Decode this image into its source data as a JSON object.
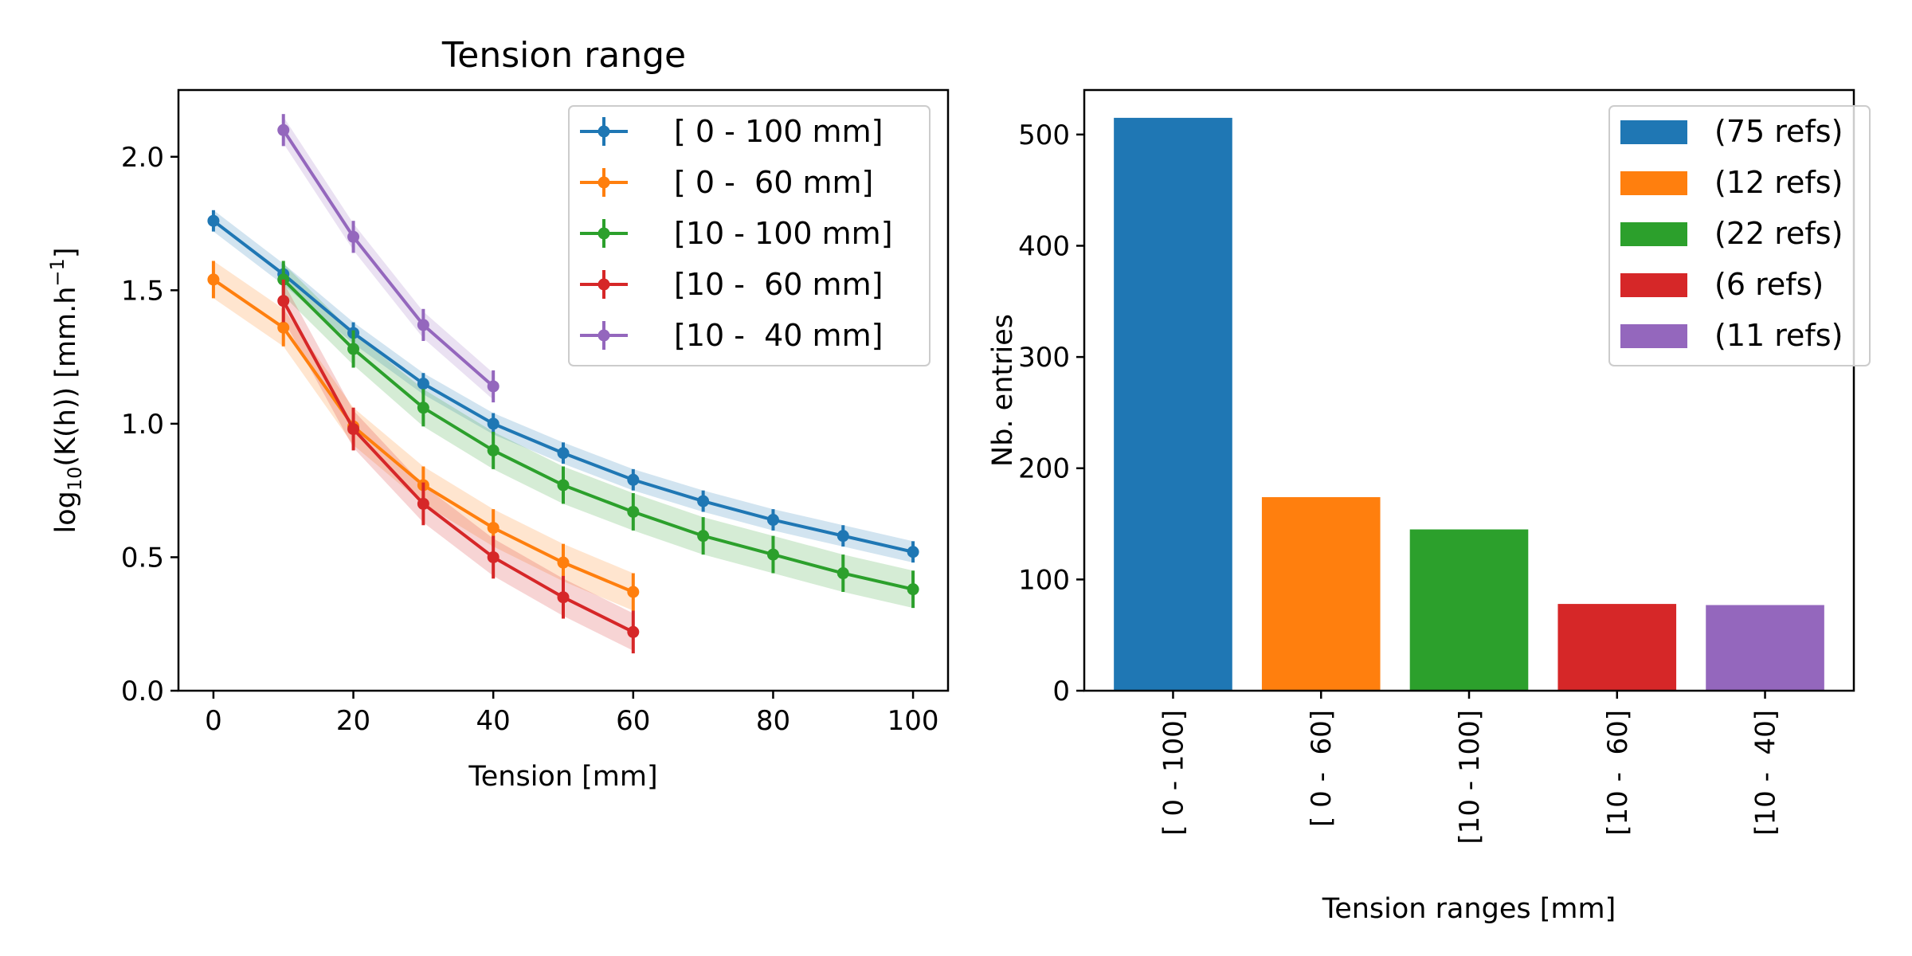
{
  "chart_data": [
    {
      "type": "line",
      "title": "Tension range",
      "xlabel": "Tension [mm]",
      "ylabel": "log10(K(h)) [mm.h-1]",
      "xlim": [
        -5,
        105
      ],
      "ylim": [
        0,
        2.25
      ],
      "xticks": [
        "0",
        "20",
        "40",
        "60",
        "80",
        "100"
      ],
      "yticks": [
        "0.0",
        "0.5",
        "1.0",
        "1.5",
        "2.0"
      ],
      "grid": false,
      "legend_position": "top-right",
      "series": [
        {
          "name": "[ 0 - 100 mm]",
          "color": "#1f77b4",
          "x": [
            0,
            10,
            20,
            30,
            40,
            50,
            60,
            70,
            80,
            90,
            100
          ],
          "y": [
            1.76,
            1.56,
            1.34,
            1.15,
            1.0,
            0.89,
            0.79,
            0.71,
            0.64,
            0.58,
            0.52
          ],
          "err": [
            0.04,
            0.04,
            0.04,
            0.04,
            0.04,
            0.04,
            0.04,
            0.04,
            0.04,
            0.04,
            0.04
          ],
          "band": [
            0.04,
            0.04,
            0.04,
            0.04,
            0.04,
            0.04,
            0.04,
            0.04,
            0.04,
            0.04,
            0.04
          ]
        },
        {
          "name": "[ 0 -  60 mm]",
          "color": "#ff7f0e",
          "x": [
            0,
            10,
            20,
            30,
            40,
            50,
            60
          ],
          "y": [
            1.54,
            1.36,
            0.99,
            0.77,
            0.61,
            0.48,
            0.37
          ],
          "err": [
            0.07,
            0.07,
            0.07,
            0.07,
            0.07,
            0.07,
            0.07
          ],
          "band": [
            0.07,
            0.07,
            0.07,
            0.07,
            0.07,
            0.07,
            0.07
          ]
        },
        {
          "name": "[10 - 100 mm]",
          "color": "#2ca02c",
          "x": [
            10,
            20,
            30,
            40,
            50,
            60,
            70,
            80,
            90,
            100
          ],
          "y": [
            1.54,
            1.28,
            1.06,
            0.9,
            0.77,
            0.67,
            0.58,
            0.51,
            0.44,
            0.38
          ],
          "err": [
            0.07,
            0.07,
            0.07,
            0.07,
            0.07,
            0.07,
            0.07,
            0.07,
            0.07,
            0.07
          ],
          "band": [
            0.06,
            0.06,
            0.07,
            0.07,
            0.07,
            0.07,
            0.07,
            0.07,
            0.07,
            0.07
          ]
        },
        {
          "name": "[10 -  60 mm]",
          "color": "#d62728",
          "x": [
            10,
            20,
            30,
            40,
            50,
            60
          ],
          "y": [
            1.46,
            0.98,
            0.7,
            0.5,
            0.35,
            0.22
          ],
          "err": [
            0.08,
            0.08,
            0.08,
            0.08,
            0.08,
            0.08
          ],
          "band": [
            0.07,
            0.07,
            0.07,
            0.07,
            0.07,
            0.07
          ]
        },
        {
          "name": "[10 -  40 mm]",
          "color": "#9467bd",
          "x": [
            10,
            20,
            30,
            40
          ],
          "y": [
            2.1,
            1.7,
            1.37,
            1.14
          ],
          "err": [
            0.06,
            0.06,
            0.06,
            0.06
          ],
          "band": [
            0.05,
            0.05,
            0.05,
            0.05
          ]
        }
      ]
    },
    {
      "type": "bar",
      "title": "",
      "xlabel": "Tension ranges [mm]",
      "ylabel": "Nb. entries",
      "ylim": [
        0,
        540
      ],
      "yticks": [
        "0",
        "100",
        "200",
        "300",
        "400",
        "500"
      ],
      "categories": [
        "[ 0 - 100]",
        "[ 0 -  60]",
        "[10 - 100]",
        "[10 -  60]",
        "[10 -  40]"
      ],
      "values": [
        515,
        174,
        145,
        78,
        77
      ],
      "colors": [
        "#1f77b4",
        "#ff7f0e",
        "#2ca02c",
        "#d62728",
        "#9467bd"
      ],
      "legend": [
        "(75 refs)",
        "(12 refs)",
        "(22 refs)",
        "(6 refs)",
        "(11 refs)"
      ],
      "grid": false,
      "legend_position": "top-right"
    }
  ]
}
